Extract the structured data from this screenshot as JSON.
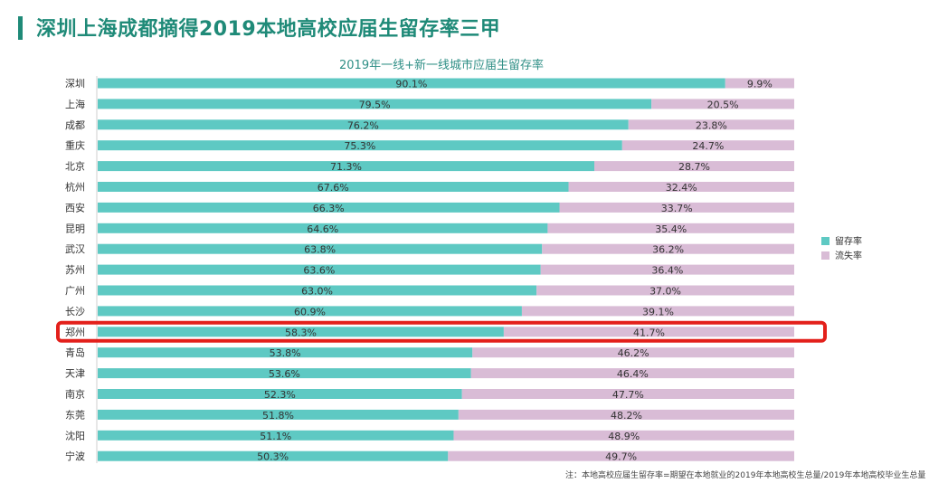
{
  "page_title": "深圳上海成都摘得2019本地高校应届生留存率三甲",
  "footnote": "注：本地高校应届生留存率=期望在本地就业的2019年本地高校生总量/2019年本地高校毕业生总量",
  "colors": {
    "title": "#1f8a78",
    "retention": "#5ec9c3",
    "outflow": "#d9bcd6",
    "highlight": "#e3201b"
  },
  "chart_data": {
    "type": "bar",
    "orientation": "horizontal",
    "stacked": true,
    "percent_stacked": true,
    "title": "2019年一线+新一线城市应届生留存率",
    "categories": [
      "深圳",
      "上海",
      "成都",
      "重庆",
      "北京",
      "杭州",
      "西安",
      "昆明",
      "武汉",
      "苏州",
      "广州",
      "长沙",
      "郑州",
      "青岛",
      "天津",
      "南京",
      "东莞",
      "沈阳",
      "宁波"
    ],
    "series": [
      {
        "name": "留存率",
        "color": "#5ec9c3",
        "values": [
          90.1,
          79.5,
          76.2,
          75.3,
          71.3,
          67.6,
          66.3,
          64.6,
          63.8,
          63.6,
          63.0,
          60.9,
          58.3,
          53.8,
          53.6,
          52.3,
          51.8,
          51.1,
          50.3
        ],
        "labels": [
          "90.1%",
          "79.5%",
          "76.2%",
          "75.3%",
          "71.3%",
          "67.6%",
          "66.3%",
          "64.6%",
          "63.8%",
          "63.6%",
          "63.0%",
          "60.9%",
          "58.3%",
          "53.8%",
          "53.6%",
          "52.3%",
          "51.8%",
          "51.1%",
          "50.3%"
        ]
      },
      {
        "name": "流失率",
        "color": "#d9bcd6",
        "values": [
          9.9,
          20.5,
          23.8,
          24.7,
          28.7,
          32.4,
          33.7,
          35.4,
          36.2,
          36.4,
          37.0,
          39.1,
          41.7,
          46.2,
          46.4,
          47.7,
          48.2,
          48.9,
          49.7
        ],
        "labels": [
          "9.9%",
          "20.5%",
          "23.8%",
          "24.7%",
          "28.7%",
          "32.4%",
          "33.7%",
          "35.4%",
          "36.2%",
          "36.4%",
          "37.0%",
          "39.1%",
          "41.7%",
          "46.2%",
          "46.4%",
          "47.7%",
          "48.2%",
          "48.9%",
          "49.7%"
        ]
      }
    ],
    "xlim": [
      0,
      100
    ],
    "legend_position": "right",
    "highlighted_category": "郑州"
  }
}
